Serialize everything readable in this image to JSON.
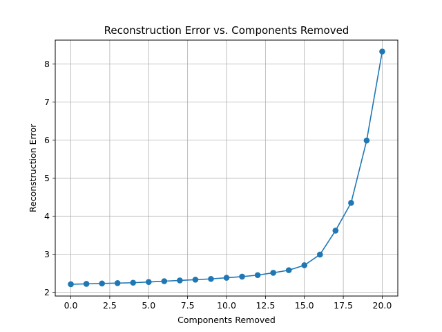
{
  "chart_data": {
    "type": "line",
    "title": "Reconstruction Error vs. Components Removed",
    "xlabel": "Components Removed",
    "ylabel": "Reconstruction Error",
    "xlim": [
      -1.0,
      21.0
    ],
    "ylim": [
      1.9,
      8.63
    ],
    "xticks": [
      0.0,
      2.5,
      5.0,
      7.5,
      10.0,
      12.5,
      15.0,
      17.5,
      20.0
    ],
    "xtick_labels": [
      "0.0",
      "2.5",
      "5.0",
      "7.5",
      "10.0",
      "12.5",
      "15.0",
      "17.5",
      "20.0"
    ],
    "yticks": [
      2,
      3,
      4,
      5,
      6,
      7,
      8
    ],
    "ytick_labels": [
      "2",
      "3",
      "4",
      "5",
      "6",
      "7",
      "8"
    ],
    "grid": true,
    "color": "#1f77b4",
    "marker": "circle",
    "series": [
      {
        "x": [
          0,
          1,
          2,
          3,
          4,
          5,
          6,
          7,
          8,
          9,
          10,
          11,
          12,
          13,
          14,
          15,
          16,
          17,
          18,
          19,
          20
        ],
        "values": [
          2.21,
          2.22,
          2.23,
          2.24,
          2.25,
          2.27,
          2.29,
          2.31,
          2.33,
          2.35,
          2.38,
          2.41,
          2.45,
          2.51,
          2.58,
          2.71,
          2.99,
          3.62,
          4.35,
          5.99,
          8.33
        ]
      }
    ]
  }
}
